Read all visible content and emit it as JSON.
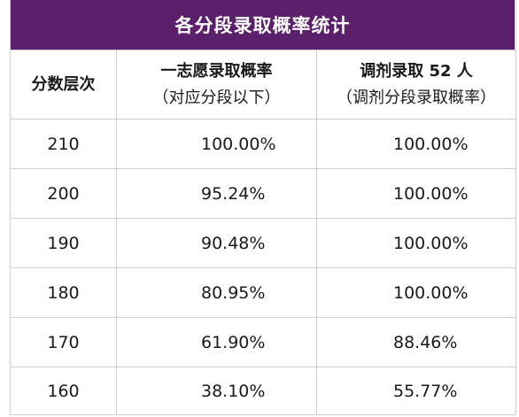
{
  "title": "各分段录取概率统计",
  "headers": {
    "col1": "分数层次",
    "col2_line1": "一志愿录取概率",
    "col2_line2": "（对应分段以下）",
    "col3_line1": "调剂录取 52 人",
    "col3_line2": "（调剂分段录取概率）"
  },
  "rows": [
    {
      "score": "210",
      "first_choice": "100.00%",
      "adjust": "100.00%"
    },
    {
      "score": "200",
      "first_choice": "95.24%",
      "adjust": "100.00%"
    },
    {
      "score": "190",
      "first_choice": "90.48%",
      "adjust": "100.00%"
    },
    {
      "score": "180",
      "first_choice": "80.95%",
      "adjust": "100.00%"
    },
    {
      "score": "170",
      "first_choice": "61.90%",
      "adjust": "88.46%"
    },
    {
      "score": "160",
      "first_choice": "38.10%",
      "adjust": "55.77%"
    }
  ],
  "colors": {
    "title_bg": "#5c1f6b",
    "title_text": "#ffffff",
    "border": "#cfcfcf"
  }
}
